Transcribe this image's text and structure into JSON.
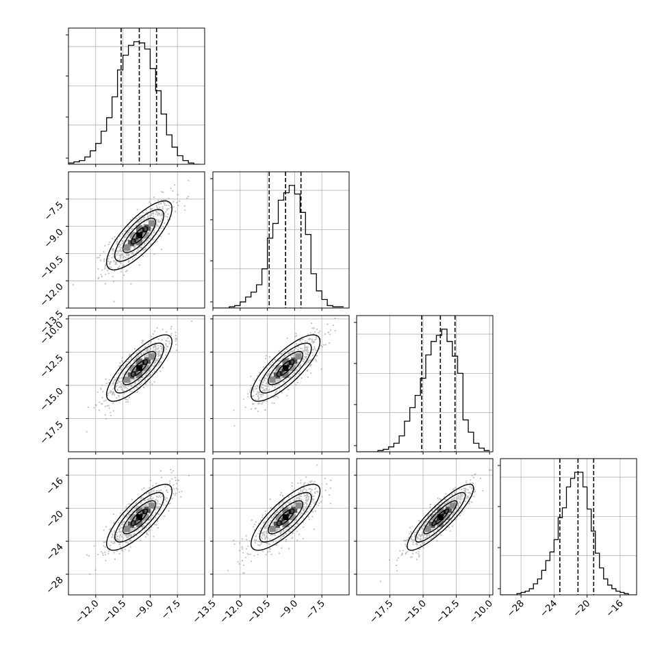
{
  "chart_data": {
    "type": "corner",
    "title": "",
    "parameters": [
      {
        "range": [
          -13.5,
          -6.0
        ],
        "ticks": [
          -12.0,
          -10.5,
          -9.0,
          -7.5
        ],
        "tick_labels": [
          "−12.0",
          "−10.5",
          "−9.0",
          "−7.5"
        ],
        "quantiles": [
          -10.6,
          -9.6,
          -8.65
        ],
        "hist_x": [
          -13.35,
          -13.05,
          -12.75,
          -12.45,
          -12.15,
          -11.85,
          -11.55,
          -11.25,
          -10.95,
          -10.65,
          -10.35,
          -10.05,
          -9.75,
          -9.45,
          -9.15,
          -8.85,
          -8.55,
          -8.25,
          -7.95,
          -7.65,
          -7.35,
          -7.05,
          -6.75,
          -6.45
        ],
        "hist_y": [
          0.01,
          0.02,
          0.03,
          0.06,
          0.11,
          0.17,
          0.27,
          0.38,
          0.55,
          0.77,
          0.89,
          0.97,
          1.0,
          0.99,
          0.94,
          0.78,
          0.6,
          0.41,
          0.24,
          0.14,
          0.07,
          0.03,
          0.01,
          0.0
        ]
      },
      {
        "range": [
          -13.5,
          -6.0
        ],
        "ticks": [
          -13.5,
          -12.0,
          -10.5,
          -9.0,
          -7.5
        ],
        "tick_labels": [
          "−13.5",
          "−12.0",
          "−10.5",
          "−9.0",
          "−7.5"
        ],
        "quantiles": [
          -10.4,
          -9.5,
          -8.65
        ],
        "hist_x": [
          -13.35,
          -13.05,
          -12.75,
          -12.45,
          -12.15,
          -11.85,
          -11.55,
          -11.25,
          -10.95,
          -10.65,
          -10.35,
          -10.05,
          -9.75,
          -9.45,
          -9.15,
          -8.85,
          -8.55,
          -8.25,
          -7.95,
          -7.65,
          -7.35,
          -7.05,
          -6.75,
          -6.45
        ],
        "hist_y": [
          0.0,
          0.0,
          0.0,
          0.01,
          0.02,
          0.05,
          0.09,
          0.13,
          0.19,
          0.32,
          0.57,
          0.69,
          0.88,
          0.94,
          1.0,
          0.93,
          0.78,
          0.6,
          0.28,
          0.14,
          0.07,
          0.02,
          0.01,
          0.01
        ]
      },
      {
        "range": [
          -20.0,
          -9.75
        ],
        "ticks": [
          -17.5,
          -15.0,
          -12.5,
          -10.0
        ],
        "tick_labels": [
          "−17.5",
          "−15.0",
          "−12.5",
          "−10.0"
        ],
        "quantiles": [
          -15.1,
          -13.7,
          -12.6
        ],
        "hist_x": [
          -19.8,
          -19.4,
          -19.0,
          -18.6,
          -18.2,
          -17.8,
          -17.4,
          -17.0,
          -16.6,
          -16.2,
          -15.8,
          -15.4,
          -15.0,
          -14.6,
          -14.2,
          -13.8,
          -13.4,
          -13.0,
          -12.6,
          -12.2,
          -11.8,
          -11.4,
          -11.0,
          -10.6,
          -10.2
        ],
        "hist_y": [
          0.0,
          0.0,
          0.0,
          0.0,
          0.01,
          0.02,
          0.04,
          0.07,
          0.13,
          0.25,
          0.36,
          0.46,
          0.6,
          0.79,
          0.9,
          0.95,
          1.0,
          0.9,
          0.78,
          0.64,
          0.26,
          0.16,
          0.07,
          0.03,
          0.01
        ]
      },
      {
        "range": [
          -30.5,
          -14.0
        ],
        "ticks": [
          -28,
          -24,
          -20,
          -16
        ],
        "tick_labels": [
          "−28",
          "−24",
          "−20",
          "−16"
        ],
        "quantiles": [
          -23.3,
          -21.1,
          -19.2
        ],
        "hist_x": [
          -30.25,
          -29.75,
          -29.25,
          -28.75,
          -28.25,
          -27.75,
          -27.25,
          -26.75,
          -26.25,
          -25.75,
          -25.25,
          -24.75,
          -24.25,
          -23.75,
          -23.25,
          -22.75,
          -22.25,
          -21.75,
          -21.25,
          -20.75,
          -20.25,
          -19.75,
          -19.25,
          -18.75,
          -18.25,
          -17.75,
          -17.25,
          -16.75,
          -16.25,
          -15.75,
          -15.25,
          -14.75,
          -14.25
        ],
        "hist_y": [
          0.0,
          0.0,
          0.0,
          0.0,
          0.01,
          0.02,
          0.03,
          0.05,
          0.09,
          0.13,
          0.2,
          0.28,
          0.35,
          0.45,
          0.63,
          0.71,
          0.88,
          0.95,
          1.0,
          1.0,
          0.88,
          0.7,
          0.52,
          0.34,
          0.22,
          0.13,
          0.08,
          0.05,
          0.03,
          0.02,
          0.01,
          0.0,
          0.0
        ]
      }
    ],
    "pairs": [
      {
        "row": 1,
        "col": 0,
        "mean": [
          -9.6,
          -9.5
        ],
        "sd": [
          0.9,
          0.95
        ],
        "corr": 0.78
      },
      {
        "row": 2,
        "col": 0,
        "mean": [
          -9.6,
          -13.7
        ],
        "sd": [
          0.9,
          1.25
        ],
        "corr": 0.8
      },
      {
        "row": 2,
        "col": 1,
        "mean": [
          -9.5,
          -13.7
        ],
        "sd": [
          0.95,
          1.25
        ],
        "corr": 0.8
      },
      {
        "row": 3,
        "col": 0,
        "mean": [
          -9.6,
          -21.1
        ],
        "sd": [
          0.9,
          2.0
        ],
        "corr": 0.8
      },
      {
        "row": 3,
        "col": 1,
        "mean": [
          -9.5,
          -21.1
        ],
        "sd": [
          0.95,
          2.0
        ],
        "corr": 0.8
      },
      {
        "row": 3,
        "col": 2,
        "mean": [
          -13.7,
          -21.1
        ],
        "sd": [
          1.25,
          2.0
        ],
        "corr": 0.88
      }
    ],
    "contour_levels_sigma": [
      0.5,
      1.0,
      1.5,
      2.0
    ],
    "grid": true,
    "legend": "none"
  }
}
